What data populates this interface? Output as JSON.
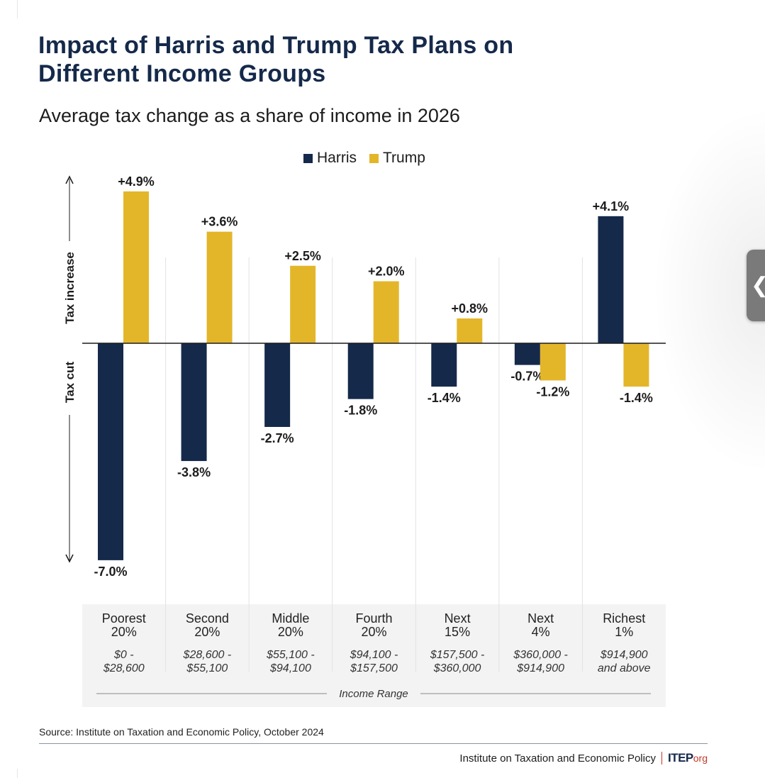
{
  "header": {
    "title": "Impact of Harris and Trump Tax Plans on Different Income Groups",
    "subtitle": "Average tax change as a share of income in 2026"
  },
  "chart_data": {
    "type": "bar",
    "title": "Impact of Harris and Trump Tax Plans on Different Income Groups",
    "subtitle": "Average tax change as a share of income in 2026",
    "xlabel": "Income Range",
    "y_axis_words": {
      "up": "Tax increase",
      "down": "Tax cut"
    },
    "categories": [
      "Poorest 20%",
      "Second 20%",
      "Middle 20%",
      "Fourth 20%",
      "Next 15%",
      "Next 4%",
      "Richest 1%"
    ],
    "category_lines": [
      [
        "Poorest",
        "20%"
      ],
      [
        "Second",
        "20%"
      ],
      [
        "Middle",
        "20%"
      ],
      [
        "Fourth",
        "20%"
      ],
      [
        "Next",
        "15%"
      ],
      [
        "Next",
        "4%"
      ],
      [
        "Richest",
        "1%"
      ]
    ],
    "income_ranges": [
      [
        "$0 -",
        "$28,600"
      ],
      [
        "$28,600 -",
        "$55,100"
      ],
      [
        "$55,100 -",
        "$94,100"
      ],
      [
        "$94,100 -",
        "$157,500"
      ],
      [
        "$157,500 -",
        "$360,000"
      ],
      [
        "$360,000 -",
        "$914,900"
      ],
      [
        "$914,900",
        "and above"
      ]
    ],
    "series": [
      {
        "name": "Harris",
        "color": "#15294a",
        "values": [
          -7.0,
          -3.8,
          -2.7,
          -1.8,
          -1.4,
          -0.7,
          4.1
        ],
        "labels": [
          "-7.0%",
          "-3.8%",
          "-2.7%",
          "-1.8%",
          "-1.4%",
          "-0.7%",
          "+4.1%"
        ]
      },
      {
        "name": "Trump",
        "color": "#e3b62a",
        "values": [
          4.9,
          3.6,
          2.5,
          2.0,
          0.8,
          -1.2,
          -1.4
        ],
        "labels": [
          "+4.9%",
          "+3.6%",
          "+2.5%",
          "+2.0%",
          "+0.8%",
          "-1.2%",
          "-1.4%"
        ]
      }
    ],
    "unit": "%",
    "ylim": [
      -7.0,
      4.9
    ],
    "grid": "vertical separators between groups",
    "legend_position": "top-center"
  },
  "source": "Source: Institute on Taxation and Economic Policy, October 2024",
  "footer": {
    "org_name": "Institute on Taxation and Economic Policy",
    "brand": "ITEP",
    "brand_suffix": "org"
  },
  "side_tab": {
    "icon": "chevron-left-icon",
    "glyph": "❮"
  }
}
